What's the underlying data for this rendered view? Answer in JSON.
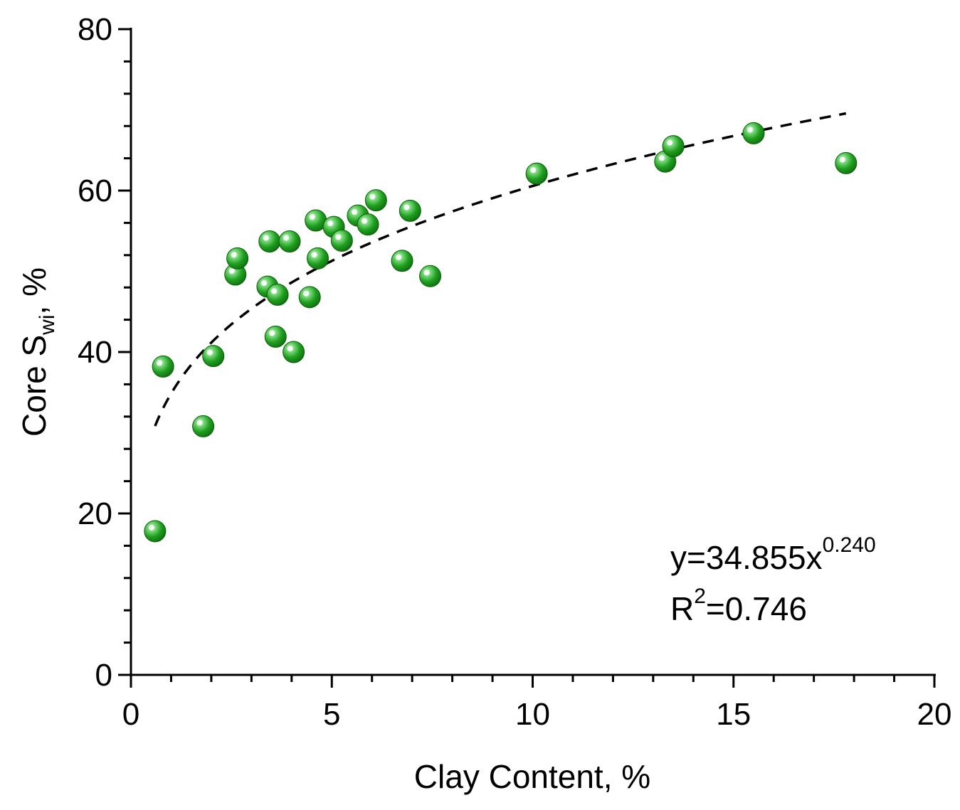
{
  "chart_data": {
    "type": "scatter",
    "xlabel": "Clay Content, %",
    "ylabel": {
      "main": "Core S",
      "sub": "wi",
      "suffix": ", %"
    },
    "xlim": [
      0,
      20
    ],
    "ylim": [
      0,
      80
    ],
    "x_ticks": [
      0,
      5,
      10,
      15,
      20
    ],
    "x_tick_labels": [
      "0",
      "5",
      "10",
      "15",
      "20"
    ],
    "y_ticks": [
      0,
      20,
      40,
      60,
      80
    ],
    "y_tick_labels": [
      "0",
      "20",
      "40",
      "60",
      "80"
    ],
    "grid": false,
    "marker_color": "#1a9a1a",
    "marker_highlight": "#e8ffe8",
    "series": [
      {
        "x": [
          0.6,
          0.8,
          1.8,
          2.05,
          2.6,
          2.65,
          3.4,
          3.45,
          3.6,
          3.65,
          3.95,
          4.05,
          4.45,
          4.6,
          4.65,
          5.05,
          5.25,
          5.65,
          5.9,
          6.1,
          6.75,
          6.95,
          7.45,
          10.1,
          13.3,
          13.5,
          15.5,
          17.8
        ],
        "y": [
          17.8,
          38.2,
          30.8,
          39.5,
          49.6,
          51.6,
          48.1,
          53.7,
          41.9,
          47.1,
          53.7,
          40.0,
          46.8,
          56.3,
          51.6,
          55.5,
          53.8,
          56.9,
          55.8,
          58.8,
          51.3,
          57.5,
          49.4,
          62.1,
          63.6,
          65.5,
          67.1,
          63.4
        ]
      }
    ],
    "fit": {
      "type": "power",
      "a": 34.855,
      "b": 0.24,
      "x_range": [
        0.6,
        17.8
      ]
    },
    "annotation": {
      "equation_prefix": "y=34.855x",
      "equation_exponent": "0.240",
      "r2_prefix": "R",
      "r2_exponent": "2",
      "r2_value": "=0.746"
    }
  }
}
